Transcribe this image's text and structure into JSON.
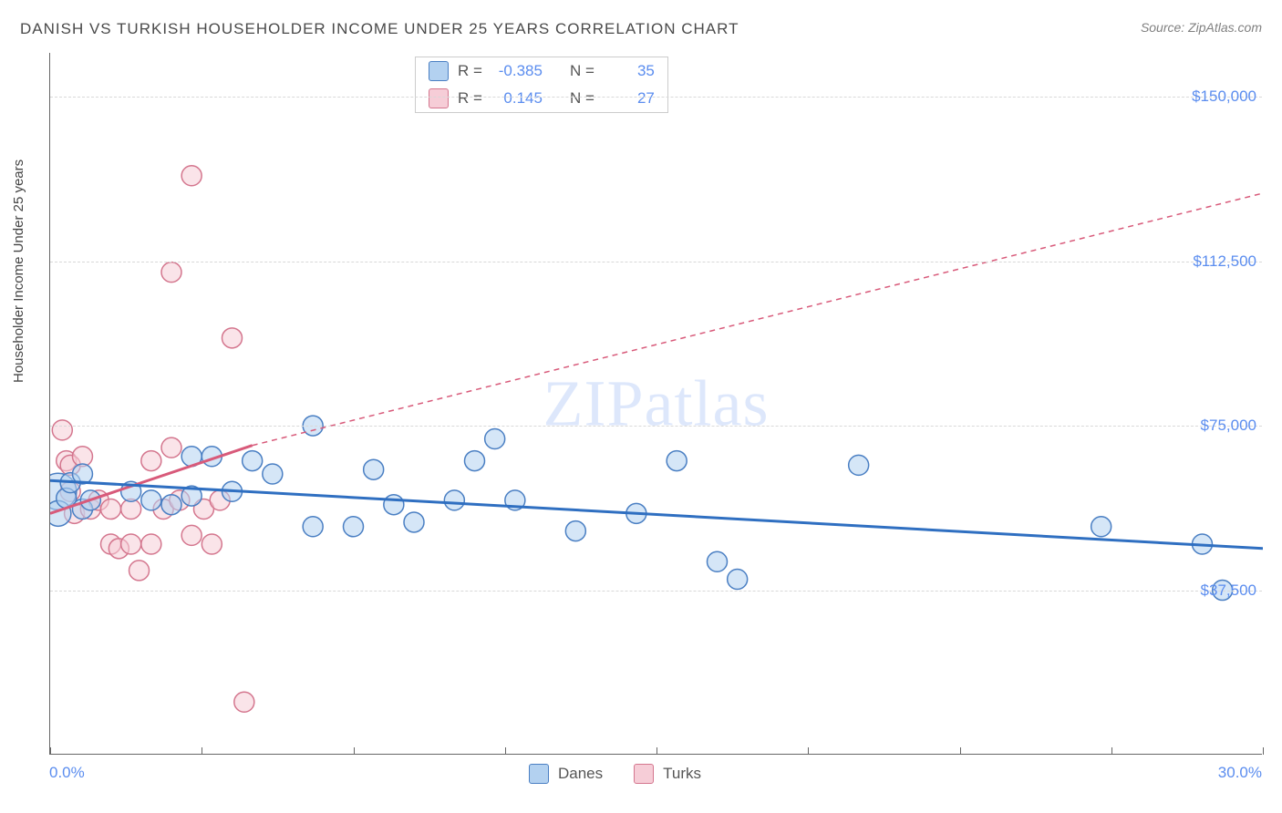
{
  "title": "DANISH VS TURKISH HOUSEHOLDER INCOME UNDER 25 YEARS CORRELATION CHART",
  "source": "Source: ZipAtlas.com",
  "ylabel": "Householder Income Under 25 years",
  "watermark_zip": "ZIP",
  "watermark_atlas": "atlas",
  "chart": {
    "type": "scatter",
    "xlim": [
      0,
      30
    ],
    "ylim": [
      0,
      160000
    ],
    "xtick_min": "0.0%",
    "xtick_max": "30.0%",
    "ytick_labels": [
      "$37,500",
      "$75,000",
      "$112,500",
      "$150,000"
    ],
    "ytick_values": [
      37500,
      75000,
      112500,
      150000
    ],
    "xtick_marks": [
      0,
      3.75,
      7.5,
      11.25,
      15,
      18.75,
      22.5,
      26.25,
      30
    ],
    "grid_color": "#d8d8d8",
    "background_color": "#ffffff",
    "axis_color": "#666666",
    "label_fontsize": 15,
    "tick_fontsize": 17,
    "tick_color": "#5b8def"
  },
  "series": {
    "danes": {
      "label": "Danes",
      "fill": "#b3d1f0",
      "stroke": "#4a7fc3",
      "fill_opacity": 0.55,
      "marker_radius": 11,
      "trend": {
        "x1": 0,
        "y1": 62500,
        "x2": 30,
        "y2": 47000,
        "color": "#2f6fc1",
        "width": 3,
        "dash": "none"
      },
      "points": [
        [
          0.2,
          60000,
          20
        ],
        [
          0.2,
          55000,
          14
        ],
        [
          0.4,
          58500,
          11
        ],
        [
          0.5,
          62000,
          11
        ],
        [
          0.8,
          64000,
          11
        ],
        [
          0.8,
          56000,
          11
        ],
        [
          1.0,
          58000,
          11
        ],
        [
          2.0,
          60000,
          11
        ],
        [
          2.5,
          58000,
          11
        ],
        [
          3.0,
          57000,
          11
        ],
        [
          3.5,
          68000,
          11
        ],
        [
          3.5,
          59000,
          11
        ],
        [
          4.0,
          68000,
          11
        ],
        [
          4.5,
          60000,
          11
        ],
        [
          5.0,
          67000,
          11
        ],
        [
          5.5,
          64000,
          11
        ],
        [
          6.5,
          52000,
          11
        ],
        [
          6.5,
          75000,
          11
        ],
        [
          7.5,
          52000,
          11
        ],
        [
          8.0,
          65000,
          11
        ],
        [
          8.5,
          57000,
          11
        ],
        [
          9.0,
          53000,
          11
        ],
        [
          10.0,
          58000,
          11
        ],
        [
          10.5,
          67000,
          11
        ],
        [
          11.0,
          72000,
          11
        ],
        [
          11.5,
          58000,
          11
        ],
        [
          13.0,
          51000,
          11
        ],
        [
          14.5,
          55000,
          11
        ],
        [
          15.5,
          67000,
          11
        ],
        [
          16.5,
          44000,
          11
        ],
        [
          17.0,
          40000,
          11
        ],
        [
          20.0,
          66000,
          11
        ],
        [
          26.0,
          52000,
          11
        ],
        [
          28.5,
          48000,
          11
        ],
        [
          29.0,
          37500,
          11
        ]
      ]
    },
    "turks": {
      "label": "Turks",
      "fill": "#f6cdd7",
      "stroke": "#d4768e",
      "fill_opacity": 0.55,
      "marker_radius": 11,
      "trend_solid": {
        "x1": 0,
        "y1": 55000,
        "x2": 5,
        "y2": 70500,
        "color": "#d85a7a",
        "width": 3
      },
      "trend_dashed": {
        "x1": 5,
        "y1": 70500,
        "x2": 30,
        "y2": 128000,
        "color": "#d85a7a",
        "width": 1.5,
        "dash": "6,5"
      },
      "points": [
        [
          0.3,
          74000,
          11
        ],
        [
          0.4,
          67000,
          11
        ],
        [
          0.5,
          60000,
          11
        ],
        [
          0.5,
          66000,
          11
        ],
        [
          0.6,
          55000,
          11
        ],
        [
          0.8,
          68000,
          11
        ],
        [
          1.0,
          56000,
          11
        ],
        [
          1.2,
          58000,
          11
        ],
        [
          1.5,
          48000,
          11
        ],
        [
          1.5,
          56000,
          11
        ],
        [
          1.7,
          47000,
          11
        ],
        [
          2.0,
          56000,
          11
        ],
        [
          2.0,
          48000,
          11
        ],
        [
          2.2,
          42000,
          11
        ],
        [
          2.5,
          67000,
          11
        ],
        [
          2.5,
          48000,
          11
        ],
        [
          2.8,
          56000,
          11
        ],
        [
          3.0,
          70000,
          11
        ],
        [
          3.0,
          110000,
          11
        ],
        [
          3.2,
          58000,
          11
        ],
        [
          3.5,
          50000,
          11
        ],
        [
          3.5,
          132000,
          11
        ],
        [
          3.8,
          56000,
          11
        ],
        [
          4.0,
          48000,
          11
        ],
        [
          4.2,
          58000,
          11
        ],
        [
          4.5,
          95000,
          11
        ],
        [
          4.8,
          12000,
          11
        ]
      ]
    }
  },
  "corr_legend": {
    "r_label": "R =",
    "n_label": "N =",
    "rows": [
      {
        "r": "-0.385",
        "n": "35",
        "swatch": "blue"
      },
      {
        "r": "0.145",
        "n": "27",
        "swatch": "pink"
      }
    ]
  }
}
